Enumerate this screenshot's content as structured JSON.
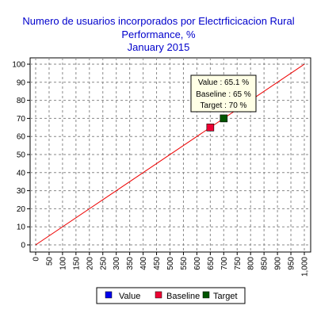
{
  "chart_data": {
    "type": "line",
    "title": [
      "Numero de usuarios incorporados por Electrficicacion Rural",
      "Performance, %",
      "January 2015"
    ],
    "xlabel": "",
    "ylabel": "",
    "xlim": [
      0,
      1000
    ],
    "ylim": [
      0,
      100
    ],
    "x_ticks": [
      0,
      50,
      100,
      150,
      200,
      250,
      300,
      350,
      400,
      450,
      500,
      550,
      600,
      650,
      700,
      750,
      800,
      850,
      900,
      950,
      1000
    ],
    "x_tick_labels": [
      "0",
      "50",
      "100",
      "150",
      "200",
      "250",
      "300",
      "350",
      "400",
      "450",
      "500",
      "550",
      "600",
      "650",
      "700",
      "750",
      "800",
      "850",
      "900",
      "950",
      "1,000"
    ],
    "y_ticks": [
      0,
      10,
      20,
      30,
      40,
      50,
      60,
      70,
      80,
      90,
      100
    ],
    "grid": true,
    "line": {
      "x": [
        0,
        1000
      ],
      "y": [
        0,
        100
      ],
      "color": "#ee0000"
    },
    "points": [
      {
        "label": "Baseline",
        "x": 650,
        "y": 65,
        "color": "#ee0033"
      },
      {
        "label": "Target",
        "x": 700,
        "y": 70,
        "color": "#005500"
      }
    ],
    "tooltip": {
      "lines": [
        "Value : 65.1 %",
        "Baseline : 65 %",
        "Target : 70 %"
      ]
    },
    "legend": {
      "position": "bottom",
      "items": [
        {
          "label": "Value",
          "color": "#0000ee"
        },
        {
          "label": "Baseline",
          "color": "#ee0033"
        },
        {
          "label": "Target",
          "color": "#005500"
        }
      ]
    }
  }
}
